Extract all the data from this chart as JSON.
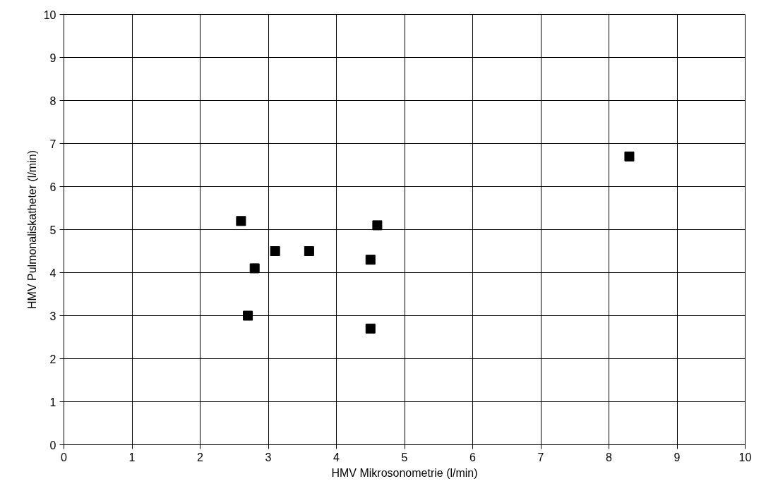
{
  "chart_data": {
    "type": "scatter",
    "xlabel": "HMV Mikrosonometrie (l/min)",
    "ylabel": "HMV Pulmonaliskatheter (l/min)",
    "x": [
      2.6,
      2.8,
      2.7,
      3.1,
      3.6,
      4.5,
      4.6,
      4.5,
      8.3
    ],
    "series": [
      {
        "color": "#000000",
        "values": [
          5.2,
          4.1,
          3.0,
          4.5,
          4.5,
          4.3,
          5.1,
          2.7,
          6.7
        ]
      }
    ],
    "xlim": [
      0,
      10
    ],
    "ylim": [
      0,
      10
    ],
    "xticks": [
      0,
      1,
      2,
      3,
      4,
      5,
      6,
      7,
      8,
      9,
      10
    ],
    "yticks": [
      0,
      1,
      2,
      3,
      4,
      5,
      6,
      7,
      8,
      9,
      10
    ],
    "grid": true,
    "marker": "square"
  }
}
